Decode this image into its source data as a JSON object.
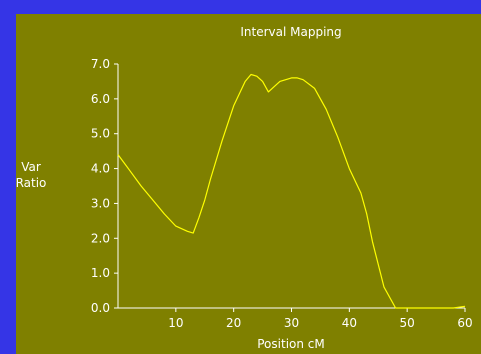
{
  "colors": {
    "outer_background": "#3535e6",
    "plot_background": "#7f8000",
    "axis": "#ffffff",
    "curve": "#ffff00",
    "text": "#ffffff"
  },
  "chart_data": {
    "type": "line",
    "title": "Interval Mapping",
    "xlabel": "Position cM",
    "ylabel": [
      "Var",
      "Ratio"
    ],
    "xlim": [
      0,
      60
    ],
    "ylim": [
      0,
      7
    ],
    "grid": false,
    "x_ticks": [
      10,
      20,
      30,
      40,
      50,
      60
    ],
    "x_tick_labels": [
      "10",
      "20",
      "30",
      "40",
      "50",
      "60"
    ],
    "y_ticks": [
      0,
      1,
      2,
      3,
      4,
      5,
      6,
      7
    ],
    "y_tick_labels": [
      "0.0",
      "1.0",
      "2.0",
      "3.0",
      "4.0",
      "5.0",
      "6.0",
      "7.0"
    ],
    "series": [
      {
        "x": [
          0,
          2,
          4,
          6,
          8,
          10,
          12,
          13,
          14,
          15,
          16,
          18,
          20,
          22,
          23,
          24,
          25,
          26,
          27,
          28,
          29,
          30,
          31,
          32,
          34,
          36,
          38,
          40,
          42,
          43,
          44,
          46,
          48,
          50,
          52,
          54,
          56,
          58,
          60
        ],
        "y": [
          4.4,
          3.95,
          3.5,
          3.1,
          2.7,
          2.35,
          2.2,
          2.15,
          2.6,
          3.1,
          3.7,
          4.8,
          5.8,
          6.5,
          6.7,
          6.65,
          6.5,
          6.2,
          6.35,
          6.5,
          6.55,
          6.6,
          6.6,
          6.55,
          6.3,
          5.7,
          4.9,
          4.0,
          3.3,
          2.7,
          1.9,
          0.6,
          0.0,
          0.0,
          0.0,
          0.0,
          0.0,
          0.0,
          0.05
        ]
      }
    ]
  }
}
